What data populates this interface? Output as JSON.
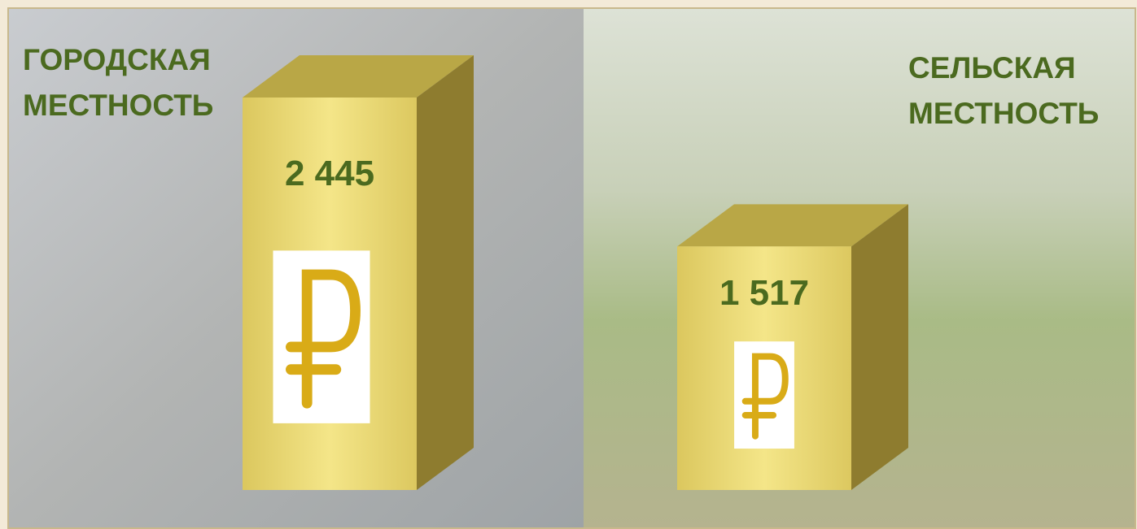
{
  "chart_data": {
    "type": "bar",
    "categories": [
      "ГОРОДСКАЯ\nМЕСТНОСТЬ",
      "СЕЛЬСКАЯ\nМЕСТНОСТЬ"
    ],
    "values": [
      2445,
      1517
    ],
    "value_labels": [
      "2 445",
      "1 517"
    ],
    "color": "#ecd86e"
  }
}
